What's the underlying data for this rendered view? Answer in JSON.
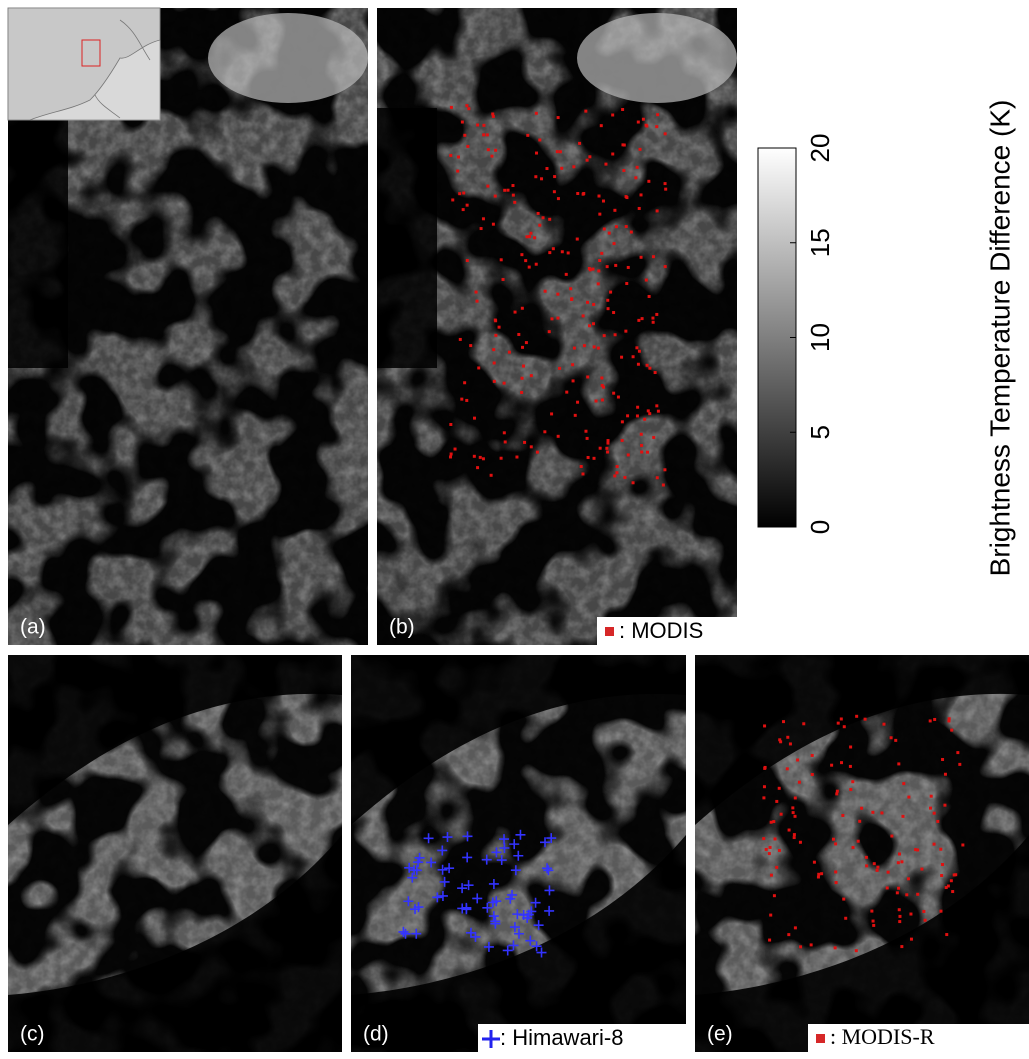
{
  "panels": [
    {
      "label": "(a)"
    },
    {
      "label": "(b)",
      "legend": ": MODIS"
    },
    {
      "label": "(c)"
    },
    {
      "label": "(d)",
      "legend": ": Himawari-8"
    },
    {
      "label": "(e)",
      "legend": ": MODIS-R"
    }
  ],
  "colorbar": {
    "label": "Brightness Temperature Difference (K)",
    "lim": [
      0,
      20
    ],
    "ticks": [
      0,
      5,
      10,
      15,
      20
    ]
  }
}
